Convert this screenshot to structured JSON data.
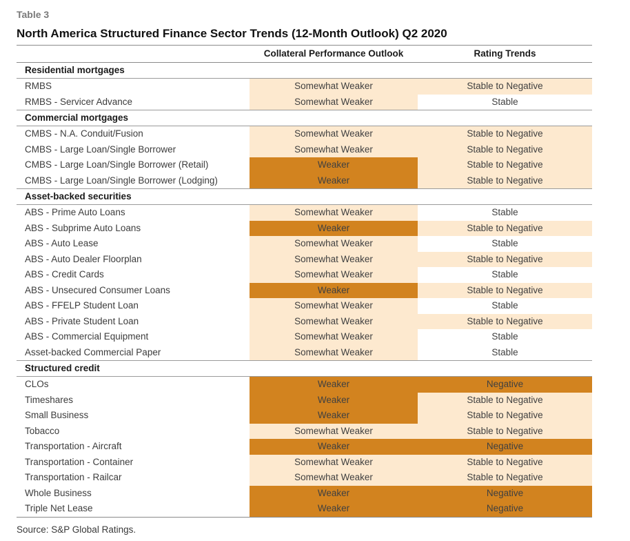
{
  "table_label": "Table 3",
  "title": "North America Structured Finance Sector Trends (12-Month Outlook) Q2 2020",
  "columns": {
    "sector": "",
    "collateral": "Collateral Performance Outlook",
    "rating": "Rating Trends"
  },
  "colors": {
    "light": "#fde9cf",
    "dark": "#d2831f",
    "white": "#ffffff"
  },
  "sections": [
    {
      "name": "Residential mortgages",
      "rows": [
        {
          "sector": "RMBS",
          "collateral": "Somewhat Weaker",
          "rating": "Stable to Negative"
        },
        {
          "sector": "RMBS - Servicer Advance",
          "collateral": "Somewhat Weaker",
          "rating": "Stable"
        }
      ]
    },
    {
      "name": "Commercial mortgages",
      "rows": [
        {
          "sector": "CMBS - N.A. Conduit/Fusion",
          "collateral": "Somewhat Weaker",
          "rating": "Stable to Negative"
        },
        {
          "sector": "CMBS - Large Loan/Single Borrower",
          "collateral": "Somewhat Weaker",
          "rating": "Stable to Negative"
        },
        {
          "sector": "CMBS - Large Loan/Single Borrower (Retail)",
          "collateral": "Weaker",
          "rating": "Stable to Negative"
        },
        {
          "sector": "CMBS - Large Loan/Single Borrower (Lodging)",
          "collateral": "Weaker",
          "rating": "Stable to Negative"
        }
      ]
    },
    {
      "name": "Asset-backed securities",
      "rows": [
        {
          "sector": "ABS - Prime Auto Loans",
          "collateral": "Somewhat Weaker",
          "rating": "Stable"
        },
        {
          "sector": "ABS - Subprime Auto Loans",
          "collateral": "Weaker",
          "rating": "Stable to Negative"
        },
        {
          "sector": "ABS - Auto Lease",
          "collateral": "Somewhat Weaker",
          "rating": "Stable"
        },
        {
          "sector": "ABS - Auto Dealer Floorplan",
          "collateral": "Somewhat Weaker",
          "rating": "Stable to Negative"
        },
        {
          "sector": "ABS - Credit Cards",
          "collateral": "Somewhat Weaker",
          "rating": "Stable"
        },
        {
          "sector": "ABS - Unsecured Consumer Loans",
          "collateral": "Weaker",
          "rating": "Stable to Negative"
        },
        {
          "sector": "ABS - FFELP Student Loan",
          "collateral": "Somewhat Weaker",
          "rating": "Stable"
        },
        {
          "sector": "ABS - Private Student Loan",
          "collateral": "Somewhat Weaker",
          "rating": "Stable to Negative"
        },
        {
          "sector": "ABS - Commercial Equipment",
          "collateral": "Somewhat Weaker",
          "rating": "Stable"
        },
        {
          "sector": "Asset-backed Commercial Paper",
          "collateral": "Somewhat Weaker",
          "rating": "Stable"
        }
      ]
    },
    {
      "name": "Structured credit",
      "rows": [
        {
          "sector": "CLOs",
          "collateral": "Weaker",
          "rating": "Negative"
        },
        {
          "sector": "Timeshares",
          "collateral": "Weaker",
          "rating": "Stable to Negative"
        },
        {
          "sector": "Small Business",
          "collateral": "Weaker",
          "rating": "Stable to Negative"
        },
        {
          "sector": "Tobacco",
          "collateral": "Somewhat Weaker",
          "rating": "Stable to Negative"
        },
        {
          "sector": "Transportation - Aircraft",
          "collateral": "Weaker",
          "rating": "Negative"
        },
        {
          "sector": "Transportation - Container",
          "collateral": "Somewhat Weaker",
          "rating": "Stable to Negative"
        },
        {
          "sector": "Transportation - Railcar",
          "collateral": "Somewhat Weaker",
          "rating": "Stable to Negative"
        },
        {
          "sector": "Whole Business",
          "collateral": "Weaker",
          "rating": "Negative"
        },
        {
          "sector": "Triple Net Lease",
          "collateral": "Weaker",
          "rating": "Negative"
        }
      ]
    }
  ],
  "source": "Source: S&P Global Ratings."
}
